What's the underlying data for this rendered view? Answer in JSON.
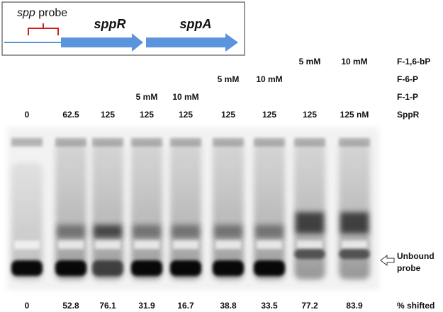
{
  "diagram": {
    "probe_name": "spp",
    "probe_word": "probe",
    "gene_1": "sppR",
    "gene_2": "sppA"
  },
  "rows": [
    {
      "label": "F-1,6-bP",
      "cells": [
        null,
        null,
        null,
        null,
        null,
        null,
        null,
        "5 mM",
        "10 mM"
      ]
    },
    {
      "label": "F-6-P",
      "cells": [
        null,
        null,
        null,
        null,
        null,
        "5 mM",
        "10 mM",
        null,
        null
      ]
    },
    {
      "label": "F-1-P",
      "cells": [
        null,
        null,
        null,
        "5 mM",
        "10 mM",
        null,
        null,
        null,
        null
      ]
    },
    {
      "label": "SppR",
      "cells": [
        "0",
        "62.5",
        "125",
        "125",
        "125",
        "125",
        "125",
        "125",
        "125 nM"
      ]
    }
  ],
  "unbound_label": [
    "Unbound",
    "probe"
  ],
  "shifted": {
    "label": "% shifted",
    "values": [
      "0",
      "52.8",
      "76.1",
      "31.9",
      "16.7",
      "38.8",
      "33.5",
      "77.2",
      "83.9"
    ]
  }
}
